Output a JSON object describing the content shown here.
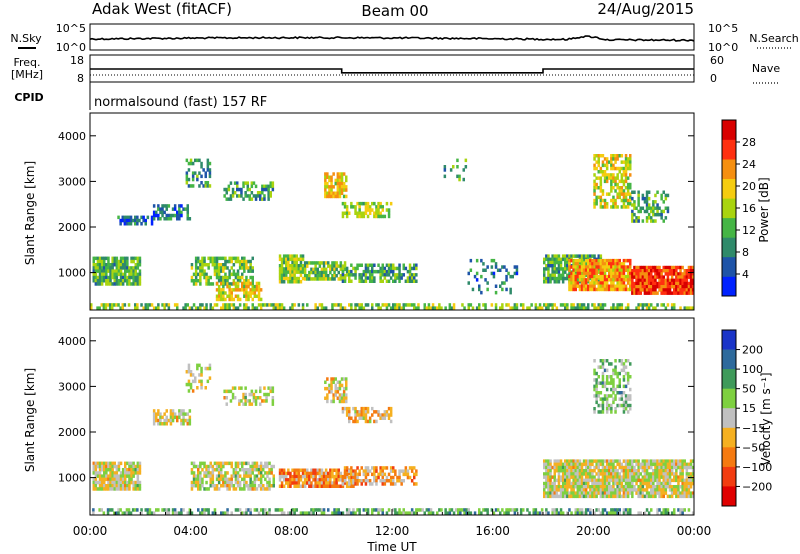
{
  "header": {
    "station": "Adak West (fitACF)",
    "beam": "Beam 00",
    "date": "24/Aug/2015"
  },
  "noise_panel": {
    "left_label": "N.Sky",
    "right_label": "N.Search",
    "left_ticks": [
      "10^5",
      "10^0"
    ],
    "right_ticks": [
      "10^5",
      "10^0"
    ]
  },
  "freq_panel": {
    "left_label_line1": "Freq.",
    "left_label_line2": "[MHz]",
    "right_label": "Nave",
    "left_ticks": [
      "18",
      "8"
    ],
    "right_ticks": [
      "60",
      "0"
    ],
    "freq_mhz_steps": [
      {
        "from_hour": 0,
        "to_hour": 10,
        "value": 13.0
      },
      {
        "from_hour": 10,
        "to_hour": 18,
        "value": 10.9
      },
      {
        "from_hour": 18,
        "to_hour": 24,
        "value": 13.0
      }
    ]
  },
  "cpid_panel": {
    "label": "CPID",
    "text": "normalsound (fast) 157 RF"
  },
  "power_colorbar": {
    "label": "Power [dB]",
    "ticks": [
      "28",
      "24",
      "20",
      "16",
      "12",
      "8",
      "4"
    ],
    "colors": [
      "#0022ff",
      "#1e54a8",
      "#2f8a6a",
      "#45b545",
      "#a9d40f",
      "#f5cc10",
      "#f58f10",
      "#ff3010",
      "#d80000"
    ]
  },
  "velocity_colorbar": {
    "label": "Velocity [m s⁻¹]",
    "ticks": [
      "200",
      "100",
      "50",
      "15",
      "−15",
      "−50",
      "−100",
      "−200"
    ],
    "colors": [
      "#1a34c8",
      "#2e6a9c",
      "#3f9a5a",
      "#7ed040",
      "#c0c0c0",
      "#f5b020",
      "#f57a10",
      "#f23c10",
      "#e00000"
    ]
  },
  "chart_data": [
    {
      "type": "heatmap",
      "ylabel": "Slant Range [km]",
      "yticks": [
        "4000",
        "3000",
        "2000",
        "1000"
      ],
      "ylim": [
        180,
        4500
      ],
      "xlim": [
        0,
        24
      ],
      "color_scale": "Power [dB] 0-30",
      "regions": [
        {
          "t0": 0.1,
          "t1": 2.0,
          "r0": 700,
          "r1": 1350,
          "level": 0.38,
          "density": 0.9
        },
        {
          "t0": 1.0,
          "t1": 2.5,
          "r0": 2050,
          "r1": 2250,
          "level": 0.2,
          "density": 0.6
        },
        {
          "t0": 2.5,
          "t1": 4.0,
          "r0": 2150,
          "r1": 2500,
          "level": 0.25,
          "density": 0.6
        },
        {
          "t0": 3.8,
          "t1": 4.8,
          "r0": 2900,
          "r1": 3500,
          "level": 0.3,
          "density": 0.45
        },
        {
          "t0": 5.3,
          "t1": 7.3,
          "r0": 2600,
          "r1": 3000,
          "level": 0.35,
          "density": 0.5
        },
        {
          "t0": 4.0,
          "t1": 6.5,
          "r0": 700,
          "r1": 1350,
          "level": 0.42,
          "density": 0.7
        },
        {
          "t0": 5.0,
          "t1": 6.8,
          "r0": 350,
          "r1": 800,
          "level": 0.6,
          "density": 0.7
        },
        {
          "t0": 7.5,
          "t1": 8.5,
          "r0": 750,
          "r1": 1400,
          "level": 0.45,
          "density": 0.8
        },
        {
          "t0": 8.5,
          "t1": 10.2,
          "r0": 800,
          "r1": 1250,
          "level": 0.4,
          "density": 0.8
        },
        {
          "t0": 9.3,
          "t1": 10.2,
          "r0": 2650,
          "r1": 3200,
          "level": 0.6,
          "density": 0.8
        },
        {
          "t0": 10.0,
          "t1": 12.0,
          "r0": 2200,
          "r1": 2550,
          "level": 0.5,
          "density": 0.7
        },
        {
          "t0": 10.0,
          "t1": 13.0,
          "r0": 800,
          "r1": 1200,
          "level": 0.35,
          "density": 0.6
        },
        {
          "t0": 13.8,
          "t1": 15.0,
          "r0": 3000,
          "r1": 3500,
          "level": 0.35,
          "density": 0.15
        },
        {
          "t0": 15.0,
          "t1": 17.0,
          "r0": 500,
          "r1": 1300,
          "level": 0.25,
          "density": 0.2
        },
        {
          "t0": 18.0,
          "t1": 20.3,
          "r0": 800,
          "r1": 1400,
          "level": 0.35,
          "density": 0.85
        },
        {
          "t0": 19.0,
          "t1": 21.5,
          "r0": 600,
          "r1": 1300,
          "level": 0.7,
          "density": 0.9
        },
        {
          "t0": 21.5,
          "t1": 24.0,
          "r0": 550,
          "r1": 1150,
          "level": 0.85,
          "density": 0.95
        },
        {
          "t0": 20.0,
          "t1": 21.5,
          "r0": 2400,
          "r1": 3600,
          "level": 0.55,
          "density": 0.6
        },
        {
          "t0": 21.5,
          "t1": 23.0,
          "r0": 2100,
          "r1": 2800,
          "level": 0.35,
          "density": 0.5
        },
        {
          "t0": 0.0,
          "t1": 24.0,
          "r0": 180,
          "r1": 330,
          "level": 0.45,
          "density": 0.55
        }
      ]
    },
    {
      "type": "heatmap",
      "ylabel": "Slant Range [km]",
      "xlabel": "Time UT",
      "yticks": [
        "4000",
        "3000",
        "2000",
        "1000"
      ],
      "xticks": [
        "00:00",
        "04:00",
        "08:00",
        "12:00",
        "16:00",
        "20:00",
        "00:00"
      ],
      "ylim": [
        180,
        4500
      ],
      "xlim": [
        0,
        24
      ],
      "color_scale": "Velocity [m/s] -200 to 200",
      "regions": [
        {
          "t0": 0.1,
          "t1": 2.0,
          "r0": 700,
          "r1": 1350,
          "level": 0.5,
          "density": 0.9
        },
        {
          "t0": 2.5,
          "t1": 4.0,
          "r0": 2150,
          "r1": 2500,
          "level": 0.5,
          "density": 0.6
        },
        {
          "t0": 3.8,
          "t1": 4.8,
          "r0": 2900,
          "r1": 3500,
          "level": 0.5,
          "density": 0.4
        },
        {
          "t0": 5.3,
          "t1": 7.3,
          "r0": 2600,
          "r1": 3000,
          "level": 0.5,
          "density": 0.5
        },
        {
          "t0": 4.0,
          "t1": 7.3,
          "r0": 700,
          "r1": 1350,
          "level": 0.5,
          "density": 0.7
        },
        {
          "t0": 7.5,
          "t1": 10.5,
          "r0": 800,
          "r1": 1200,
          "level": 0.32,
          "density": 0.85
        },
        {
          "t0": 10.0,
          "t1": 13.0,
          "r0": 850,
          "r1": 1250,
          "level": 0.36,
          "density": 0.6
        },
        {
          "t0": 9.3,
          "t1": 10.2,
          "r0": 2650,
          "r1": 3200,
          "level": 0.45,
          "density": 0.6
        },
        {
          "t0": 10.0,
          "t1": 12.0,
          "r0": 2200,
          "r1": 2550,
          "level": 0.4,
          "density": 0.6
        },
        {
          "t0": 18.0,
          "t1": 24.0,
          "r0": 550,
          "r1": 1400,
          "level": 0.5,
          "density": 0.9
        },
        {
          "t0": 20.0,
          "t1": 21.5,
          "r0": 2400,
          "r1": 3600,
          "level": 0.62,
          "density": 0.5
        },
        {
          "t0": 0.0,
          "t1": 24.0,
          "r0": 180,
          "r1": 330,
          "level": 0.66,
          "density": 0.55
        }
      ]
    }
  ]
}
